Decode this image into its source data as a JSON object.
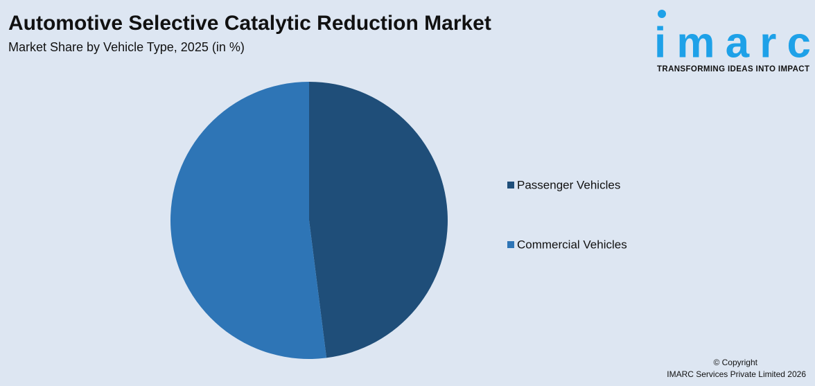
{
  "chart_data": {
    "type": "pie",
    "title": "Automotive Selective Catalytic Reduction Market",
    "subtitle": "Market Share by Vehicle Type, 2025 (in %)",
    "categories": [
      "Passenger Vehicles",
      "Commercial Vehicles"
    ],
    "values": [
      48,
      52
    ],
    "colors": [
      "#1f4e79",
      "#2e75b6"
    ],
    "legend": "right"
  },
  "logo": {
    "name": "imarc",
    "tagline": "TRANSFORMING IDEAS INTO IMPACT"
  },
  "footer": {
    "copyright": "© Copyright",
    "company": "IMARC Services Private Limited 2026"
  }
}
